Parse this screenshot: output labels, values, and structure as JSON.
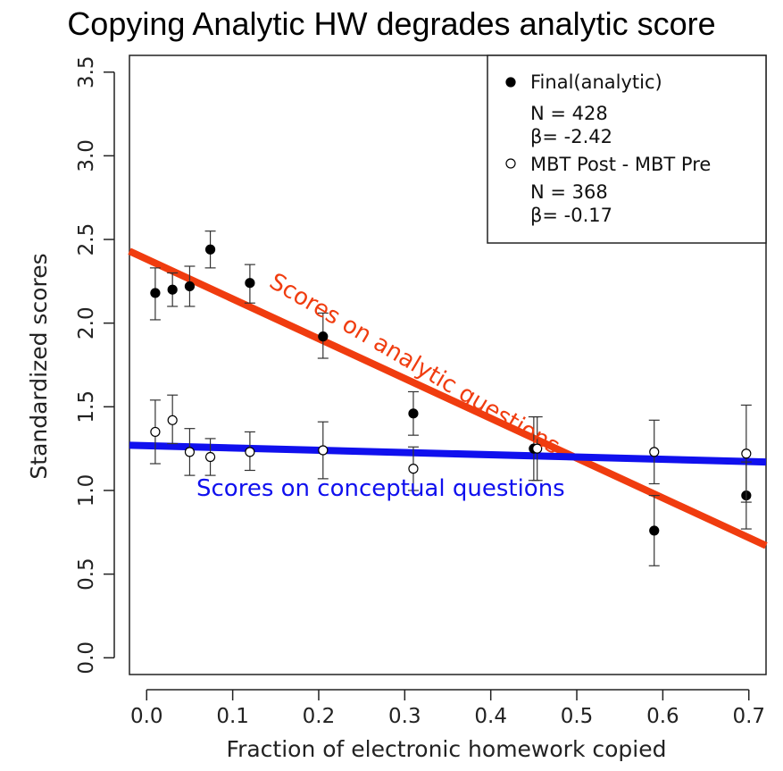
{
  "chart_data": {
    "type": "scatter",
    "title": "Copying Analytic HW degrades analytic score",
    "xlabel": "Fraction of electronic homework copied",
    "ylabel": "Standardized scores",
    "xlim": [
      -0.02,
      0.72
    ],
    "ylim": [
      -0.1,
      3.6
    ],
    "x_ticks": [
      "0.0",
      "0.1",
      "0.2",
      "0.3",
      "0.4",
      "0.5",
      "0.6",
      "0.7"
    ],
    "y_ticks": [
      "0.0",
      "0.5",
      "1.0",
      "1.5",
      "2.0",
      "2.5",
      "3.0",
      "3.5"
    ],
    "grid": false,
    "legend_position": "top-right",
    "legend": [
      {
        "marker": "filled-circle",
        "label": "Final(analytic)",
        "n_text": "N = 428",
        "beta_text": "β= -2.42"
      },
      {
        "marker": "open-circle",
        "label": "MBT Post - MBT Pre",
        "n_text": "N = 368",
        "beta_text": "β= -0.17"
      }
    ],
    "series": [
      {
        "name": "Final(analytic)",
        "marker": "filled",
        "points": [
          {
            "x": 0.01,
            "y": 2.18,
            "lo": 2.02,
            "hi": 2.33
          },
          {
            "x": 0.03,
            "y": 2.2,
            "lo": 2.1,
            "hi": 2.3
          },
          {
            "x": 0.05,
            "y": 2.22,
            "lo": 2.1,
            "hi": 2.34
          },
          {
            "x": 0.074,
            "y": 2.44,
            "lo": 2.33,
            "hi": 2.55
          },
          {
            "x": 0.12,
            "y": 2.24,
            "lo": 2.12,
            "hi": 2.35
          },
          {
            "x": 0.205,
            "y": 1.92,
            "lo": 1.79,
            "hi": 2.06
          },
          {
            "x": 0.31,
            "y": 1.46,
            "lo": 1.33,
            "hi": 1.59
          },
          {
            "x": 0.45,
            "y": 1.25,
            "lo": 1.06,
            "hi": 1.44
          },
          {
            "x": 0.59,
            "y": 0.76,
            "lo": 0.55,
            "hi": 0.97
          },
          {
            "x": 0.697,
            "y": 0.97,
            "lo": 0.77,
            "hi": 1.17
          }
        ]
      },
      {
        "name": "MBT Post - MBT Pre",
        "marker": "open",
        "points": [
          {
            "x": 0.01,
            "y": 1.35,
            "lo": 1.16,
            "hi": 1.54
          },
          {
            "x": 0.03,
            "y": 1.42,
            "lo": 1.28,
            "hi": 1.57
          },
          {
            "x": 0.05,
            "y": 1.23,
            "lo": 1.09,
            "hi": 1.37
          },
          {
            "x": 0.074,
            "y": 1.2,
            "lo": 1.09,
            "hi": 1.31
          },
          {
            "x": 0.12,
            "y": 1.23,
            "lo": 1.12,
            "hi": 1.35
          },
          {
            "x": 0.205,
            "y": 1.24,
            "lo": 1.07,
            "hi": 1.41
          },
          {
            "x": 0.31,
            "y": 1.13,
            "lo": 1.0,
            "hi": 1.26
          },
          {
            "x": 0.454,
            "y": 1.25,
            "lo": 1.06,
            "hi": 1.44
          },
          {
            "x": 0.59,
            "y": 1.23,
            "lo": 1.04,
            "hi": 1.42
          },
          {
            "x": 0.697,
            "y": 1.22,
            "lo": 0.93,
            "hi": 1.51
          }
        ]
      }
    ],
    "trend_lines": [
      {
        "label": "Scores on analytic questions",
        "color": "#f03c0f",
        "x0": -0.02,
        "y0": 2.43,
        "x1": 0.72,
        "y1": 0.67
      },
      {
        "label": "Scores on conceptual questions",
        "color": "#1010ee",
        "x0": -0.02,
        "y0": 1.27,
        "x1": 0.72,
        "y1": 1.17
      }
    ]
  }
}
